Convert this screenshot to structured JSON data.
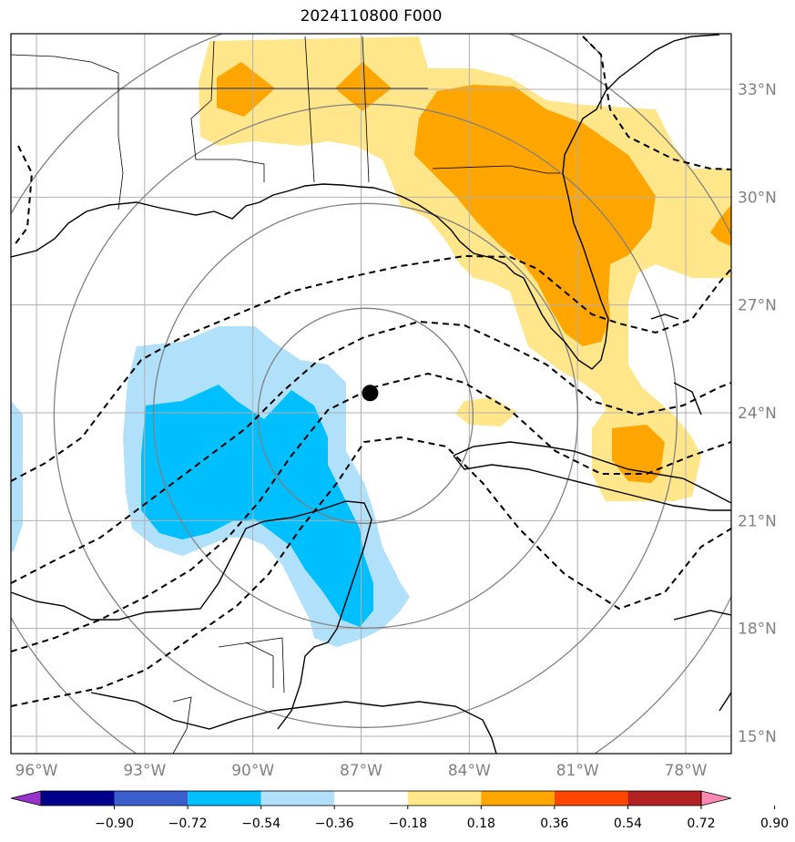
{
  "title": "2024110800 F000",
  "map": {
    "lon_range": [
      -97,
      -77
    ],
    "lat_range": [
      14.5,
      34.5
    ],
    "lat_ticks": [
      {
        "value": 33,
        "label": "33°N"
      },
      {
        "value": 30,
        "label": "30°N"
      },
      {
        "value": 27,
        "label": "27°N"
      },
      {
        "value": 24,
        "label": "24°N"
      },
      {
        "value": 21,
        "label": "21°N"
      },
      {
        "value": 18,
        "label": "18°N"
      },
      {
        "value": 15,
        "label": "15°N"
      }
    ],
    "lon_ticks": [
      {
        "value": -96,
        "label": "96°W"
      },
      {
        "value": -93,
        "label": "93°W"
      },
      {
        "value": -90,
        "label": "90°W"
      },
      {
        "value": -87,
        "label": "87°W"
      },
      {
        "value": -84,
        "label": "84°W"
      },
      {
        "value": -81,
        "label": "81°W"
      },
      {
        "value": -78,
        "label": "78°W"
      }
    ],
    "storm_center": {
      "lon": -86.75,
      "lat": 24.55
    },
    "range_ring_color": "#808080",
    "grid_color": "#b0b0b0"
  },
  "colorbar": {
    "labels": [
      "−0.90",
      "−0.72",
      "−0.54",
      "−0.36",
      "−0.18",
      "0.18",
      "0.36",
      "0.54",
      "0.72",
      "0.90"
    ],
    "colors": [
      "#9932cc",
      "#00008b",
      "#3a5fcd",
      "#00bfff",
      "#b0e0fa",
      "#ffffff",
      "#ffe68a",
      "#ffa500",
      "#ff4500",
      "#b22222",
      "#ff88b4"
    ],
    "positive_colors": {
      "0.18": "#ffe68a",
      "0.36": "#ffa500"
    },
    "negative_colors": {
      "-0.18": "#b0e0fa",
      "-0.36": "#00bfff"
    }
  }
}
